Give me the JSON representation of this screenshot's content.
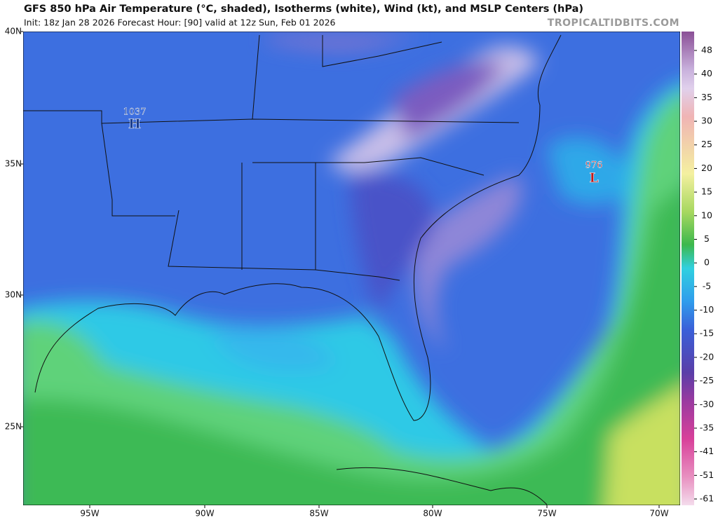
{
  "header": {
    "title": "GFS 850 hPa Air Temperature (°C, shaded), Isotherms (white), Wind (kt), and MSLP Centers (hPa)",
    "subtitle": "Init: 18z Jan 28 2026   Forecast Hour: [90]   valid at 12z Sun, Feb 01 2026",
    "watermark": "TROPICALTIDBITS.COM"
  },
  "map": {
    "latitude_labels": [
      "40N",
      "35N",
      "30N",
      "25N"
    ],
    "longitude_labels": [
      "95W",
      "90W",
      "85W",
      "80W",
      "75W",
      "70W"
    ],
    "pressure_centers": [
      {
        "value": "1037",
        "symbol": "H"
      },
      {
        "value": "976",
        "symbol": "L"
      }
    ]
  },
  "colorbar": {
    "labels": [
      48,
      40,
      35,
      30,
      25,
      20,
      15,
      10,
      5,
      0,
      -5,
      -10,
      -15,
      -20,
      -25,
      -30,
      -35,
      -41,
      -51,
      -61
    ]
  }
}
